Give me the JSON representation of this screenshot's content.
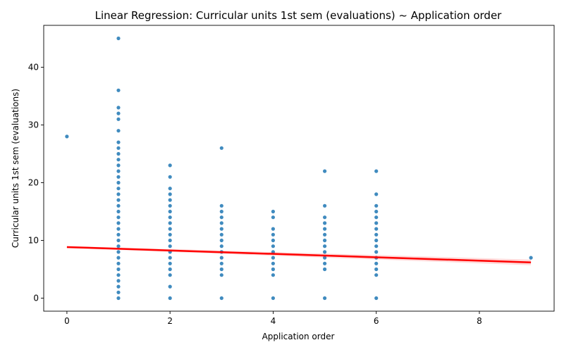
{
  "chart_data": {
    "type": "scatter",
    "title": "Linear Regression: Curricular units 1st sem (evaluations) ~ Application order",
    "xlabel": "Application order",
    "ylabel": "Curricular units 1st sem (evaluations)",
    "xlim": [
      -0.45,
      9.45
    ],
    "ylim": [
      -2.25,
      47.25
    ],
    "xticks": [
      0,
      2,
      4,
      6,
      8
    ],
    "yticks": [
      0,
      10,
      20,
      30,
      40
    ],
    "grid": false,
    "point_color": "#1f77b4",
    "line_color": "#ff0000",
    "points": [
      [
        0,
        28
      ],
      [
        1,
        0
      ],
      [
        1,
        1
      ],
      [
        1,
        2
      ],
      [
        1,
        3
      ],
      [
        1,
        4
      ],
      [
        1,
        5
      ],
      [
        1,
        6
      ],
      [
        1,
        7
      ],
      [
        1,
        8
      ],
      [
        1,
        9
      ],
      [
        1,
        10
      ],
      [
        1,
        11
      ],
      [
        1,
        12
      ],
      [
        1,
        13
      ],
      [
        1,
        14
      ],
      [
        1,
        15
      ],
      [
        1,
        16
      ],
      [
        1,
        17
      ],
      [
        1,
        18
      ],
      [
        1,
        19
      ],
      [
        1,
        20
      ],
      [
        1,
        21
      ],
      [
        1,
        22
      ],
      [
        1,
        23
      ],
      [
        1,
        24
      ],
      [
        1,
        25
      ],
      [
        1,
        26
      ],
      [
        1,
        27
      ],
      [
        1,
        29
      ],
      [
        1,
        31
      ],
      [
        1,
        32
      ],
      [
        1,
        33
      ],
      [
        1,
        36
      ],
      [
        1,
        45
      ],
      [
        2,
        0
      ],
      [
        2,
        2
      ],
      [
        2,
        4
      ],
      [
        2,
        5
      ],
      [
        2,
        6
      ],
      [
        2,
        7
      ],
      [
        2,
        8
      ],
      [
        2,
        9
      ],
      [
        2,
        10
      ],
      [
        2,
        11
      ],
      [
        2,
        12
      ],
      [
        2,
        13
      ],
      [
        2,
        14
      ],
      [
        2,
        15
      ],
      [
        2,
        16
      ],
      [
        2,
        17
      ],
      [
        2,
        18
      ],
      [
        2,
        19
      ],
      [
        2,
        21
      ],
      [
        2,
        23
      ],
      [
        3,
        0
      ],
      [
        3,
        4
      ],
      [
        3,
        5
      ],
      [
        3,
        6
      ],
      [
        3,
        7
      ],
      [
        3,
        8
      ],
      [
        3,
        9
      ],
      [
        3,
        10
      ],
      [
        3,
        11
      ],
      [
        3,
        12
      ],
      [
        3,
        13
      ],
      [
        3,
        14
      ],
      [
        3,
        15
      ],
      [
        3,
        16
      ],
      [
        3,
        26
      ],
      [
        4,
        0
      ],
      [
        4,
        4
      ],
      [
        4,
        5
      ],
      [
        4,
        6
      ],
      [
        4,
        7
      ],
      [
        4,
        8
      ],
      [
        4,
        9
      ],
      [
        4,
        10
      ],
      [
        4,
        11
      ],
      [
        4,
        12
      ],
      [
        4,
        14
      ],
      [
        4,
        15
      ],
      [
        5,
        0
      ],
      [
        5,
        5
      ],
      [
        5,
        6
      ],
      [
        5,
        7
      ],
      [
        5,
        8
      ],
      [
        5,
        9
      ],
      [
        5,
        10
      ],
      [
        5,
        11
      ],
      [
        5,
        12
      ],
      [
        5,
        13
      ],
      [
        5,
        14
      ],
      [
        5,
        16
      ],
      [
        5,
        22
      ],
      [
        6,
        0
      ],
      [
        6,
        4
      ],
      [
        6,
        5
      ],
      [
        6,
        6
      ],
      [
        6,
        7
      ],
      [
        6,
        8
      ],
      [
        6,
        9
      ],
      [
        6,
        10
      ],
      [
        6,
        11
      ],
      [
        6,
        12
      ],
      [
        6,
        13
      ],
      [
        6,
        14
      ],
      [
        6,
        15
      ],
      [
        6,
        16
      ],
      [
        6,
        18
      ],
      [
        6,
        22
      ],
      [
        9,
        7
      ]
    ],
    "regression_line": {
      "x": [
        0,
        9
      ],
      "y": [
        8.85,
        6.2
      ]
    }
  }
}
